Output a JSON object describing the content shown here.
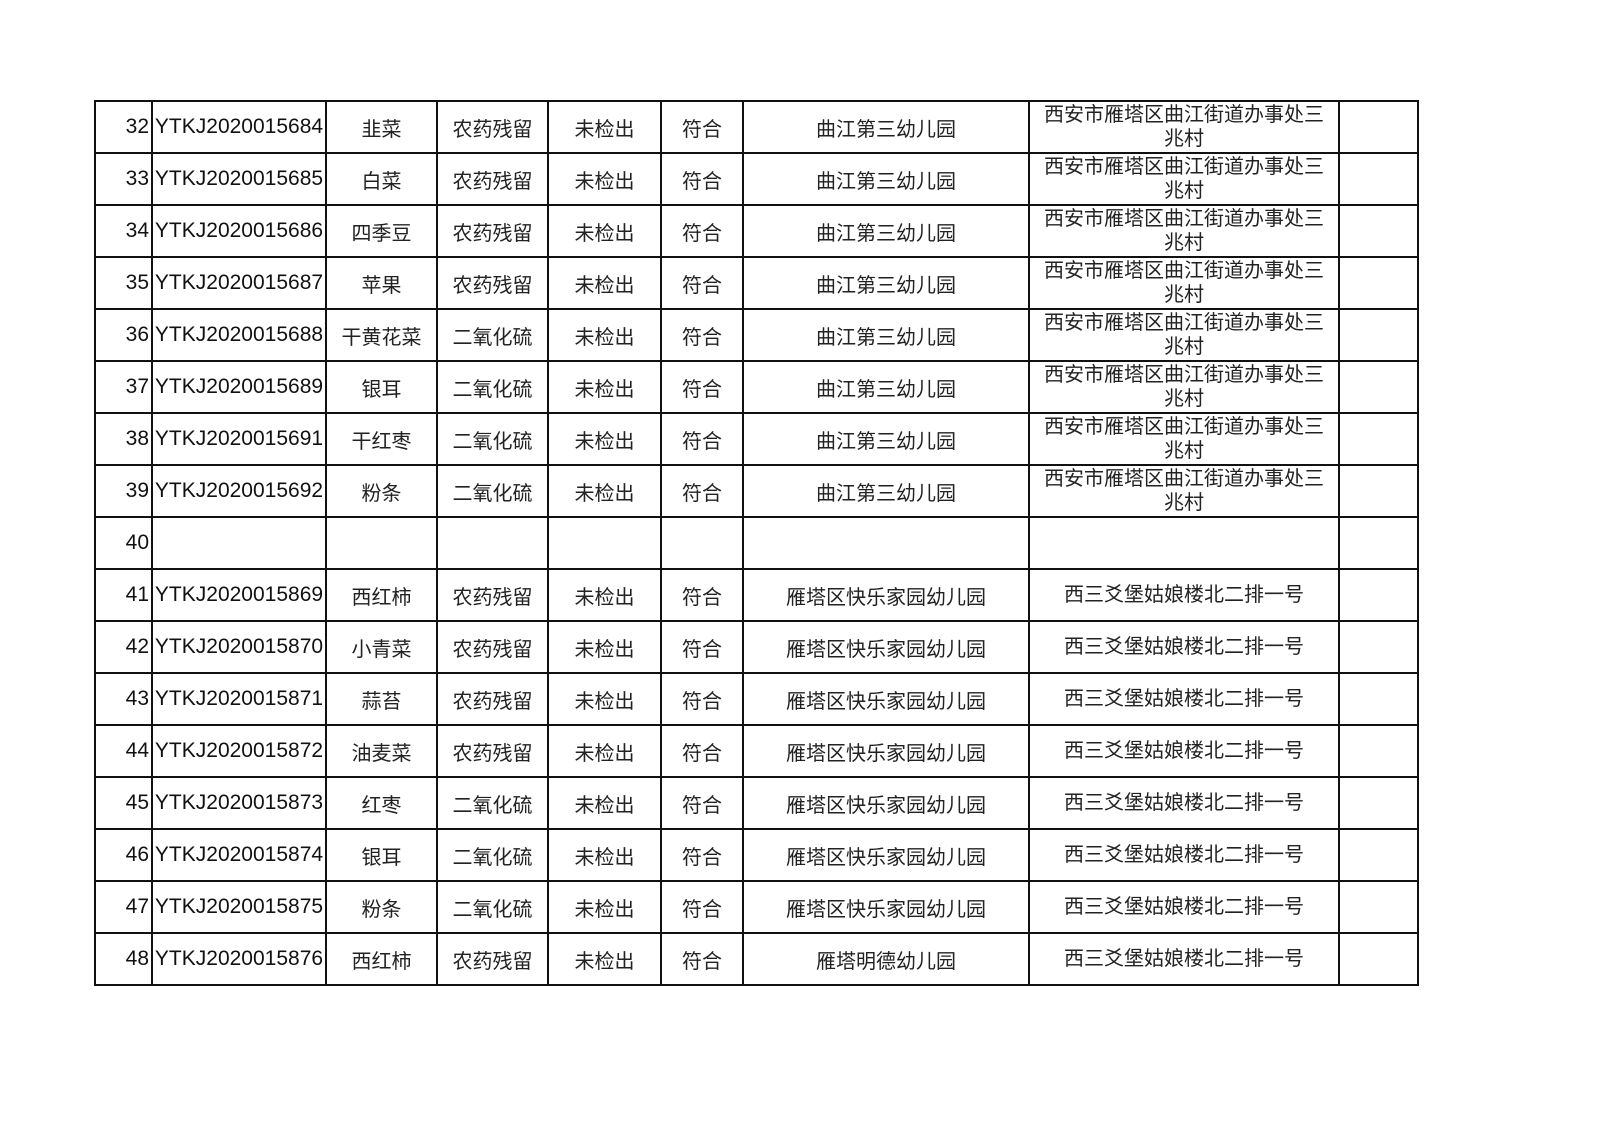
{
  "table": {
    "rows": [
      {
        "no": "32",
        "id": "YTKJ2020015684",
        "sample": "韭菜",
        "item": "农药残留",
        "result": "未检出",
        "verdict": "符合",
        "unit": "曲江第三幼儿园",
        "address": "西安市雁塔区曲江街道办事处三兆村",
        "note": ""
      },
      {
        "no": "33",
        "id": "YTKJ2020015685",
        "sample": "白菜",
        "item": "农药残留",
        "result": "未检出",
        "verdict": "符合",
        "unit": "曲江第三幼儿园",
        "address": "西安市雁塔区曲江街道办事处三兆村",
        "note": ""
      },
      {
        "no": "34",
        "id": "YTKJ2020015686",
        "sample": "四季豆",
        "item": "农药残留",
        "result": "未检出",
        "verdict": "符合",
        "unit": "曲江第三幼儿园",
        "address": "西安市雁塔区曲江街道办事处三兆村",
        "note": ""
      },
      {
        "no": "35",
        "id": "YTKJ2020015687",
        "sample": "苹果",
        "item": "农药残留",
        "result": "未检出",
        "verdict": "符合",
        "unit": "曲江第三幼儿园",
        "address": "西安市雁塔区曲江街道办事处三兆村",
        "note": ""
      },
      {
        "no": "36",
        "id": "YTKJ2020015688",
        "sample": "干黄花菜",
        "item": "二氧化硫",
        "result": "未检出",
        "verdict": "符合",
        "unit": "曲江第三幼儿园",
        "address": "西安市雁塔区曲江街道办事处三兆村",
        "note": ""
      },
      {
        "no": "37",
        "id": "YTKJ2020015689",
        "sample": "银耳",
        "item": "二氧化硫",
        "result": "未检出",
        "verdict": "符合",
        "unit": "曲江第三幼儿园",
        "address": "西安市雁塔区曲江街道办事处三兆村",
        "note": ""
      },
      {
        "no": "38",
        "id": "YTKJ2020015691",
        "sample": "干红枣",
        "item": "二氧化硫",
        "result": "未检出",
        "verdict": "符合",
        "unit": "曲江第三幼儿园",
        "address": "西安市雁塔区曲江街道办事处三兆村",
        "note": ""
      },
      {
        "no": "39",
        "id": "YTKJ2020015692",
        "sample": "粉条",
        "item": "二氧化硫",
        "result": "未检出",
        "verdict": "符合",
        "unit": "曲江第三幼儿园",
        "address": "西安市雁塔区曲江街道办事处三兆村",
        "note": ""
      },
      {
        "no": "40",
        "id": "",
        "sample": "",
        "item": "",
        "result": "",
        "verdict": "",
        "unit": "",
        "address": "",
        "note": ""
      },
      {
        "no": "41",
        "id": "YTKJ2020015869",
        "sample": "西红柿",
        "item": "农药残留",
        "result": "未检出",
        "verdict": "符合",
        "unit": "雁塔区快乐家园幼儿园",
        "address": "西三爻堡姑娘楼北二排一号",
        "note": ""
      },
      {
        "no": "42",
        "id": "YTKJ2020015870",
        "sample": "小青菜",
        "item": "农药残留",
        "result": "未检出",
        "verdict": "符合",
        "unit": "雁塔区快乐家园幼儿园",
        "address": "西三爻堡姑娘楼北二排一号",
        "note": ""
      },
      {
        "no": "43",
        "id": "YTKJ2020015871",
        "sample": "蒜苔",
        "item": "农药残留",
        "result": "未检出",
        "verdict": "符合",
        "unit": "雁塔区快乐家园幼儿园",
        "address": "西三爻堡姑娘楼北二排一号",
        "note": ""
      },
      {
        "no": "44",
        "id": "YTKJ2020015872",
        "sample": "油麦菜",
        "item": "农药残留",
        "result": "未检出",
        "verdict": "符合",
        "unit": "雁塔区快乐家园幼儿园",
        "address": "西三爻堡姑娘楼北二排一号",
        "note": ""
      },
      {
        "no": "45",
        "id": "YTKJ2020015873",
        "sample": "红枣",
        "item": "二氧化硫",
        "result": "未检出",
        "verdict": "符合",
        "unit": "雁塔区快乐家园幼儿园",
        "address": "西三爻堡姑娘楼北二排一号",
        "note": ""
      },
      {
        "no": "46",
        "id": "YTKJ2020015874",
        "sample": "银耳",
        "item": "二氧化硫",
        "result": "未检出",
        "verdict": "符合",
        "unit": "雁塔区快乐家园幼儿园",
        "address": "西三爻堡姑娘楼北二排一号",
        "note": ""
      },
      {
        "no": "47",
        "id": "YTKJ2020015875",
        "sample": "粉条",
        "item": "二氧化硫",
        "result": "未检出",
        "verdict": "符合",
        "unit": "雁塔区快乐家园幼儿园",
        "address": "西三爻堡姑娘楼北二排一号",
        "note": ""
      },
      {
        "no": "48",
        "id": "YTKJ2020015876",
        "sample": "西红柿",
        "item": "农药残留",
        "result": "未检出",
        "verdict": "符合",
        "unit": "雁塔明德幼儿园",
        "address": "西三爻堡姑娘楼北二排一号",
        "note": ""
      }
    ]
  }
}
